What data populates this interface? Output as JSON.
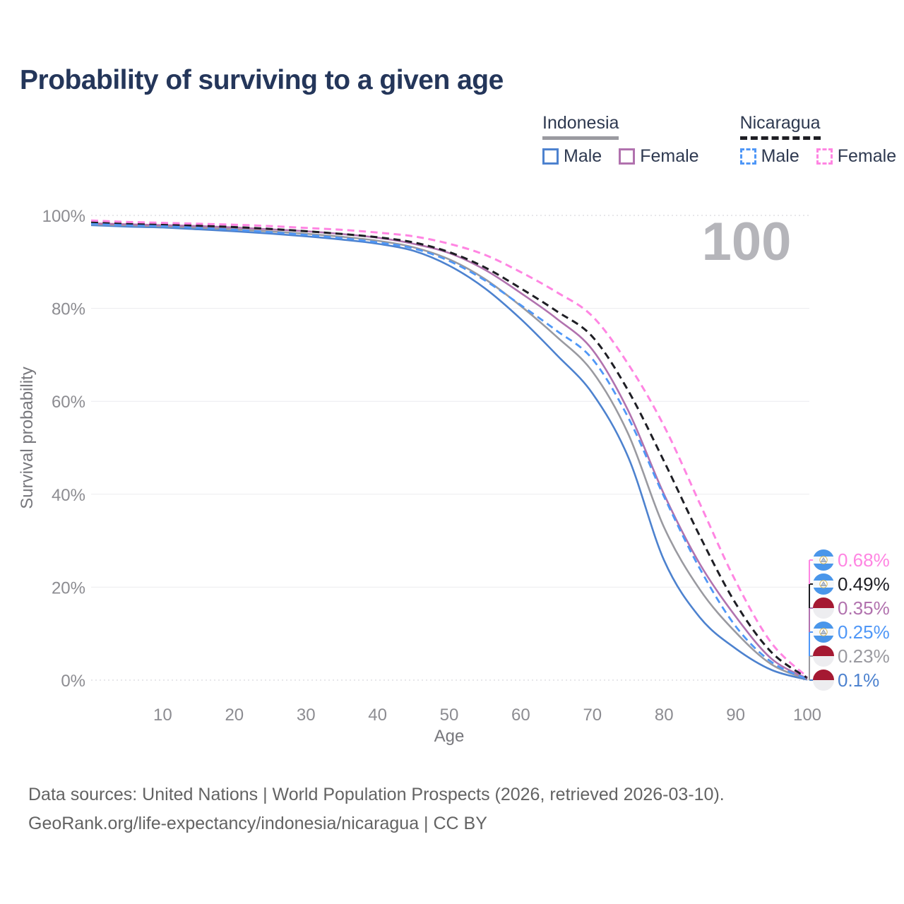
{
  "header": {
    "title": "Probability of surviving to a given age"
  },
  "watermark": {
    "text": "100"
  },
  "legend": {
    "groups": [
      {
        "name": "Indonesia",
        "line_style": "solid",
        "underline_color": "#9a9aa0",
        "items": [
          {
            "label": "Male",
            "color": "#4d82cf",
            "dashed": false
          },
          {
            "label": "Female",
            "color": "#b172ae",
            "dashed": false
          }
        ]
      },
      {
        "name": "Nicaragua",
        "line_style": "dashed",
        "underline_color": "#1e1e24",
        "items": [
          {
            "label": "Male",
            "color": "#4f97f7",
            "dashed": true
          },
          {
            "label": "Female",
            "color": "#ff85e2",
            "dashed": true
          }
        ]
      }
    ]
  },
  "chart_data": {
    "type": "line",
    "title": "Probability of surviving to a given age",
    "xlabel": "Age",
    "ylabel": "Survival probability",
    "xlim": [
      0,
      100
    ],
    "ylim": [
      0,
      100
    ],
    "grid": true,
    "x_ticks": [
      10,
      20,
      30,
      40,
      50,
      60,
      70,
      80,
      90,
      100
    ],
    "y_ticks": [
      0,
      20,
      40,
      60,
      80,
      100
    ],
    "y_tick_labels": [
      "0%",
      "20%",
      "40%",
      "60%",
      "80%",
      "100%"
    ],
    "x": [
      0,
      5,
      10,
      15,
      20,
      25,
      30,
      35,
      40,
      45,
      50,
      55,
      60,
      65,
      70,
      75,
      80,
      85,
      90,
      95,
      100
    ],
    "series": [
      {
        "name": "Indonesia Male",
        "country": "indonesia",
        "sex": "male",
        "color": "#4d82cf",
        "dashed": false,
        "width": 2.6,
        "end_label": "0.1%",
        "values": [
          97.9,
          97.6,
          97.4,
          97.0,
          96.6,
          96.1,
          95.5,
          94.8,
          93.9,
          92.4,
          89.2,
          84.3,
          77.7,
          70.0,
          61.7,
          48.0,
          25.8,
          13.5,
          6.8,
          2.2,
          0.1
        ]
      },
      {
        "name": "Indonesia (both sexes)",
        "country": "indonesia",
        "sex": "both",
        "color": "#9a9aa0",
        "dashed": false,
        "width": 2.6,
        "end_label": "0.23%",
        "values": [
          98.1,
          97.85,
          97.65,
          97.35,
          97.0,
          96.55,
          96.05,
          95.4,
          94.55,
          93.15,
          90.55,
          86.3,
          80.5,
          73.9,
          66.4,
          53.0,
          32.9,
          19.5,
          10.3,
          3.4,
          0.23
        ]
      },
      {
        "name": "Indonesia Female",
        "country": "indonesia",
        "sex": "female",
        "color": "#b172ae",
        "dashed": false,
        "width": 2.6,
        "end_label": "0.35%",
        "values": [
          98.3,
          98.1,
          97.9,
          97.7,
          97.4,
          97.0,
          96.6,
          96.0,
          95.2,
          93.9,
          91.9,
          88.3,
          83.3,
          77.8,
          71.1,
          58.0,
          40.0,
          25.0,
          13.7,
          4.6,
          0.35
        ]
      },
      {
        "name": "Nicaragua Male",
        "country": "nicaragua",
        "sex": "male",
        "color": "#4f97f7",
        "dashed": true,
        "width": 2.8,
        "end_label": "0.25%",
        "values": [
          98.2,
          97.9,
          97.7,
          97.3,
          96.9,
          96.4,
          95.8,
          95.1,
          94.2,
          92.9,
          90.2,
          86.0,
          80.7,
          75.2,
          69.1,
          56.5,
          39.5,
          24.0,
          11.6,
          3.9,
          0.25
        ]
      },
      {
        "name": "Nicaragua (both sexes)",
        "country": "nicaragua",
        "sex": "both",
        "color": "#1e1e24",
        "dashed": true,
        "width": 3,
        "end_label": "0.49%",
        "values": [
          98.6,
          98.3,
          98.1,
          97.8,
          97.5,
          97.1,
          96.6,
          96.0,
          95.3,
          94.2,
          92.1,
          88.8,
          84.3,
          79.4,
          73.9,
          62.3,
          47.1,
          31.0,
          16.5,
          6.0,
          0.49
        ]
      },
      {
        "name": "Nicaragua Female",
        "country": "nicaragua",
        "sex": "female",
        "color": "#ff85e2",
        "dashed": true,
        "width": 3,
        "end_label": "0.68%",
        "values": [
          98.9,
          98.6,
          98.4,
          98.2,
          98.0,
          97.7,
          97.3,
          96.9,
          96.3,
          95.5,
          93.9,
          91.5,
          87.8,
          83.5,
          78.3,
          68.0,
          54.7,
          38.0,
          21.3,
          8.0,
          0.68
        ]
      }
    ]
  },
  "footer": {
    "line1": "Data sources: United Nations | World Population Prospects (2026, retrieved 2026-03-10).",
    "line2": "GeoRank.org/life-expectancy/indonesia/nicaragua | CC BY"
  }
}
